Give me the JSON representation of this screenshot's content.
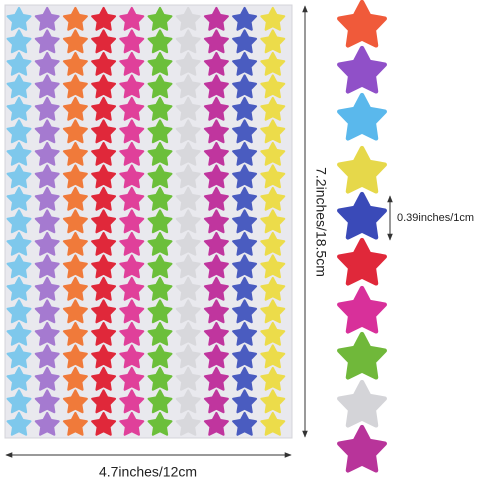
{
  "dimensions": {
    "height": "7.2inches/18.5cm",
    "width": "4.7inches/12cm",
    "star_size": "0.39inches/1cm"
  }
}
